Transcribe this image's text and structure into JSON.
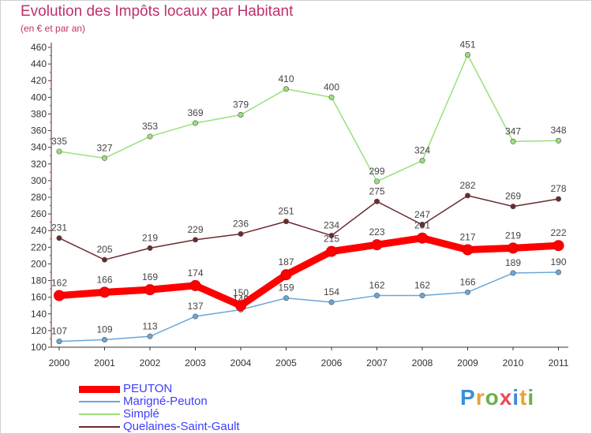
{
  "chart_data": {
    "type": "line",
    "title": "Evolution des Impôts locaux par Habitant",
    "subtitle": "(en € et par an)",
    "xlabel": "",
    "ylabel": "",
    "ylim": [
      100,
      460
    ],
    "yticks": [
      "100",
      "120",
      "140",
      "160",
      "180",
      "200",
      "220",
      "240",
      "260",
      "280",
      "300",
      "320",
      "340",
      "360",
      "380",
      "400",
      "420",
      "440",
      "460"
    ],
    "categories": [
      "2000",
      "2001",
      "2002",
      "2003",
      "2004",
      "2005",
      "2006",
      "2007",
      "2008",
      "2009",
      "2010",
      "2011"
    ],
    "series": [
      {
        "name": "Simplé",
        "color": "#99e07a",
        "values": [
          335,
          327,
          353,
          369,
          379,
          410,
          400,
          299,
          324,
          451,
          347,
          348
        ]
      },
      {
        "name": "Quelaines-Saint-Gault",
        "color": "#6b2a2e",
        "values": [
          231,
          205,
          219,
          229,
          236,
          251,
          234,
          275,
          247,
          282,
          269,
          278
        ]
      },
      {
        "name": "Marigné-Peuton",
        "color": "#6aa7d8",
        "values": [
          107,
          109,
          113,
          137,
          145,
          159,
          154,
          162,
          162,
          166,
          189,
          190
        ]
      },
      {
        "name": "PEUTON",
        "color": "#ff0000",
        "values": [
          162,
          166,
          169,
          174,
          150,
          187,
          215,
          223,
          231,
          217,
          219,
          222
        ]
      }
    ],
    "point_labels": {
      "Simplé": [
        "335",
        "327",
        "353",
        "369",
        "379",
        "410",
        "400",
        "299",
        "324",
        "451",
        "347",
        "348"
      ],
      "Quelaines-Saint-Gault": [
        "231",
        "205",
        "219",
        "229",
        "236",
        "251",
        "234",
        "275",
        "247",
        "282",
        "269",
        "278"
      ],
      "Marigné-Peuton": [
        "107",
        "109",
        "113",
        "137",
        "145",
        "159",
        "154",
        "162",
        "162",
        "166",
        "189",
        "190"
      ],
      "PEUTON": [
        "162",
        "166",
        "169",
        "174",
        "150",
        "187",
        "215",
        "223",
        "231",
        "217",
        "219",
        "222"
      ]
    },
    "legend": [
      {
        "label": "PEUTON",
        "color": "#ff0000"
      },
      {
        "label": "Marigné-Peuton",
        "color": "#6aa7d8"
      },
      {
        "label": "Simplé",
        "color": "#99e07a"
      },
      {
        "label": "Quelaines-Saint-Gault",
        "color": "#6b2a2e"
      }
    ],
    "legend_position": "bottom-left",
    "grid": false
  },
  "logo": {
    "letters": [
      "P",
      "r",
      "o",
      "x",
      "i",
      "t",
      "i"
    ],
    "colors": [
      "#3b8ed8",
      "#e8a23a",
      "#6ab04c",
      "#e84a5f",
      "#3b8ed8",
      "#e8a23a",
      "#6ab04c"
    ]
  }
}
